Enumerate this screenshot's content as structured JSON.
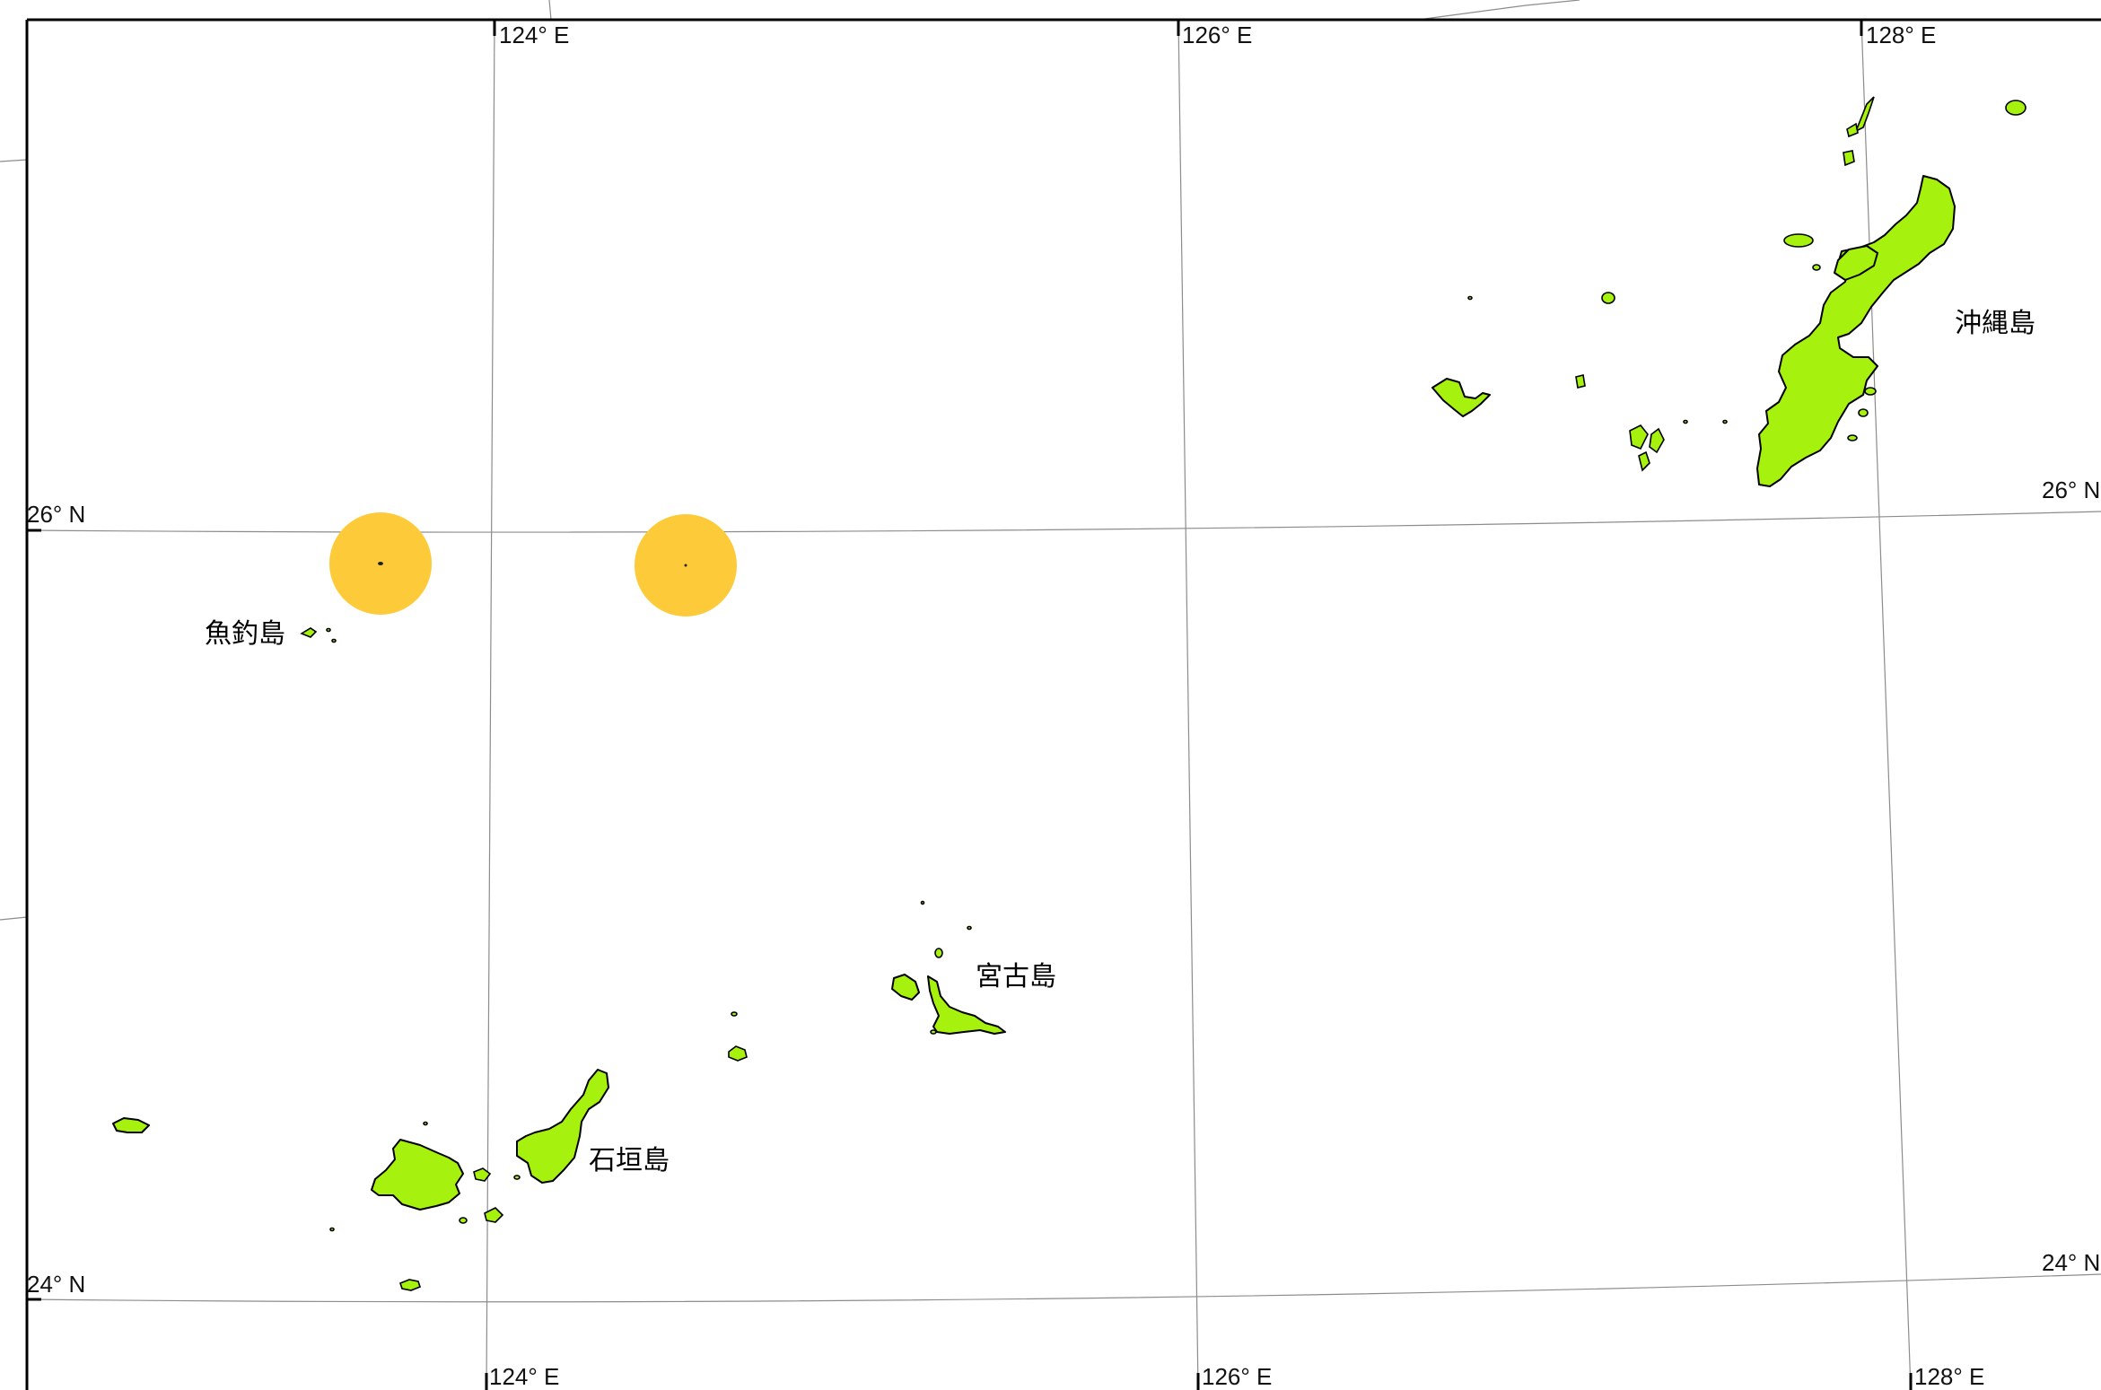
{
  "colors": {
    "land": "#a6f20e",
    "marker": "#fdcb3a",
    "grid": "#8c8c8c",
    "frame": "#000000",
    "background": "#ffffff"
  },
  "graticule": {
    "longitude_labels_top": [
      "124° E",
      "126° E",
      "128° E"
    ],
    "longitude_labels_bottom": [
      "124° E",
      "126° E",
      "128° E"
    ],
    "latitude_labels_left": [
      "26° N",
      "24° N"
    ],
    "latitude_labels_right": [
      "26° N",
      "24° N"
    ]
  },
  "places": {
    "okinawa": "沖縄島",
    "uotsuri": "魚釣島",
    "miyako": "宮古島",
    "ishigaki": "石垣島"
  },
  "markers": [
    {
      "name": "highlight-circle-west"
    },
    {
      "name": "highlight-circle-east"
    }
  ]
}
